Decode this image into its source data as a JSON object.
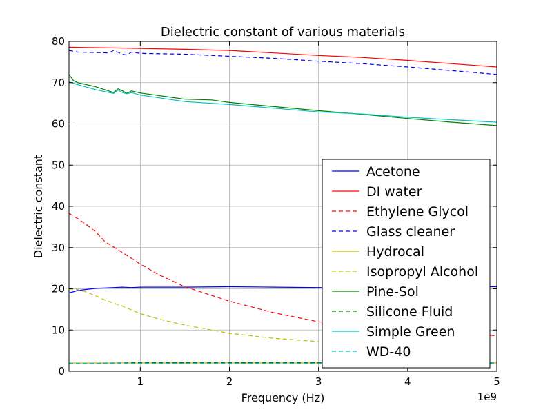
{
  "chart_data": {
    "type": "line",
    "title": "Dielectric constant of various materials",
    "xlabel": "Frequency (Hz)",
    "ylabel": "Dielectric constant",
    "x_offset_label": "1e9",
    "xlim": [
      0.2,
      5
    ],
    "ylim": [
      0,
      80
    ],
    "x_ticks": [
      1,
      2,
      3,
      4,
      5
    ],
    "x_tick_labels": [
      "1",
      "2",
      "3",
      "4",
      "5"
    ],
    "y_ticks": [
      0,
      10,
      20,
      30,
      40,
      50,
      60,
      70,
      80
    ],
    "y_tick_labels": [
      "0",
      "10",
      "20",
      "30",
      "40",
      "50",
      "60",
      "70",
      "80"
    ],
    "grid": true,
    "legend_position": "right",
    "series": [
      {
        "name": "Acetone",
        "color": "#0000ff",
        "dash": "solid",
        "x": [
          0.2,
          0.3,
          0.5,
          0.7,
          0.8,
          0.9,
          1.0,
          1.5,
          2.0,
          2.5,
          3.0,
          3.5,
          4.0,
          4.5,
          5.0
        ],
        "y": [
          19.0,
          19.6,
          20.1,
          20.3,
          20.4,
          20.3,
          20.4,
          20.4,
          20.5,
          20.4,
          20.3,
          20.4,
          20.5,
          20.5,
          20.5
        ]
      },
      {
        "name": "DI water",
        "color": "#ff0000",
        "dash": "solid",
        "x": [
          0.2,
          0.5,
          0.8,
          1.0,
          1.5,
          2.0,
          2.5,
          3.0,
          3.5,
          4.0,
          4.5,
          5.0
        ],
        "y": [
          78.6,
          78.5,
          78.4,
          78.3,
          78.1,
          77.8,
          77.2,
          76.6,
          76.1,
          75.4,
          74.6,
          73.8
        ]
      },
      {
        "name": "Ethylene Glycol",
        "color": "#ff0000",
        "dash": "dashed",
        "x": [
          0.2,
          0.3,
          0.4,
          0.5,
          0.6,
          0.8,
          1.0,
          1.2,
          1.5,
          2.0,
          2.5,
          3.0,
          3.5,
          4.0,
          4.5,
          5.0
        ],
        "y": [
          38.3,
          37.0,
          35.5,
          33.8,
          31.5,
          28.8,
          26.0,
          23.5,
          20.5,
          17.0,
          14.2,
          12.0,
          11.0,
          10.2,
          9.4,
          8.6
        ]
      },
      {
        "name": "Glass cleaner",
        "color": "#0000ff",
        "dash": "dashed",
        "x": [
          0.2,
          0.3,
          0.5,
          0.65,
          0.7,
          0.8,
          0.85,
          0.9,
          1.0,
          1.5,
          2.0,
          2.5,
          3.0,
          3.5,
          4.0,
          4.5,
          5.0
        ],
        "y": [
          77.8,
          77.4,
          77.3,
          77.2,
          77.8,
          76.9,
          76.7,
          77.4,
          77.1,
          76.9,
          76.4,
          75.9,
          75.2,
          74.6,
          73.8,
          72.9,
          72.0
        ]
      },
      {
        "name": "Hydrocal",
        "color": "#bfbf00",
        "dash": "solid",
        "x": [
          0.2,
          1.0,
          2.0,
          3.0,
          4.0,
          5.0
        ],
        "y": [
          2.0,
          2.0,
          2.0,
          2.0,
          2.0,
          2.0
        ]
      },
      {
        "name": "Isopropyl Alcohol",
        "color": "#bfbf00",
        "dash": "dashed",
        "x": [
          0.2,
          0.3,
          0.4,
          0.5,
          0.6,
          0.8,
          1.0,
          1.2,
          1.5,
          2.0,
          2.5,
          3.0
        ],
        "y": [
          20.0,
          19.8,
          19.2,
          18.3,
          17.3,
          15.8,
          14.0,
          12.7,
          11.2,
          9.2,
          8.0,
          7.2
        ]
      },
      {
        "name": "Pine-Sol",
        "color": "#008000",
        "dash": "solid",
        "x": [
          0.2,
          0.25,
          0.3,
          0.5,
          0.7,
          0.75,
          0.8,
          0.85,
          0.9,
          1.0,
          1.5,
          1.8,
          2.0,
          2.5,
          3.0,
          3.5,
          4.0,
          4.5,
          5.0
        ],
        "y": [
          72.0,
          70.5,
          70.0,
          69.0,
          67.6,
          68.5,
          68.0,
          67.4,
          68.0,
          67.5,
          66.0,
          65.8,
          65.2,
          64.2,
          63.2,
          62.3,
          61.3,
          60.4,
          59.6
        ]
      },
      {
        "name": "Silicone Fluid",
        "color": "#008000",
        "dash": "dashed",
        "x": [
          0.2,
          1.0,
          2.0,
          3.0,
          4.0,
          5.0
        ],
        "y": [
          1.8,
          2.1,
          2.1,
          2.1,
          2.0,
          2.0
        ]
      },
      {
        "name": "Simple Green",
        "color": "#00bfbf",
        "dash": "solid",
        "x": [
          0.2,
          0.3,
          0.5,
          0.7,
          0.75,
          0.8,
          0.85,
          0.9,
          1.0,
          1.5,
          2.0,
          2.5,
          3.0,
          3.5,
          4.0,
          4.5,
          5.0
        ],
        "y": [
          70.2,
          69.5,
          68.3,
          67.4,
          68.2,
          67.6,
          67.3,
          67.6,
          67.0,
          65.4,
          64.7,
          63.8,
          62.9,
          62.4,
          61.6,
          61.0,
          60.4
        ]
      },
      {
        "name": "WD-40",
        "color": "#00bfbf",
        "dash": "dashed",
        "x": [
          0.2,
          1.0,
          2.0,
          3.0,
          4.0,
          5.0
        ],
        "y": [
          1.9,
          1.9,
          1.9,
          1.9,
          1.9,
          1.9
        ]
      }
    ]
  }
}
